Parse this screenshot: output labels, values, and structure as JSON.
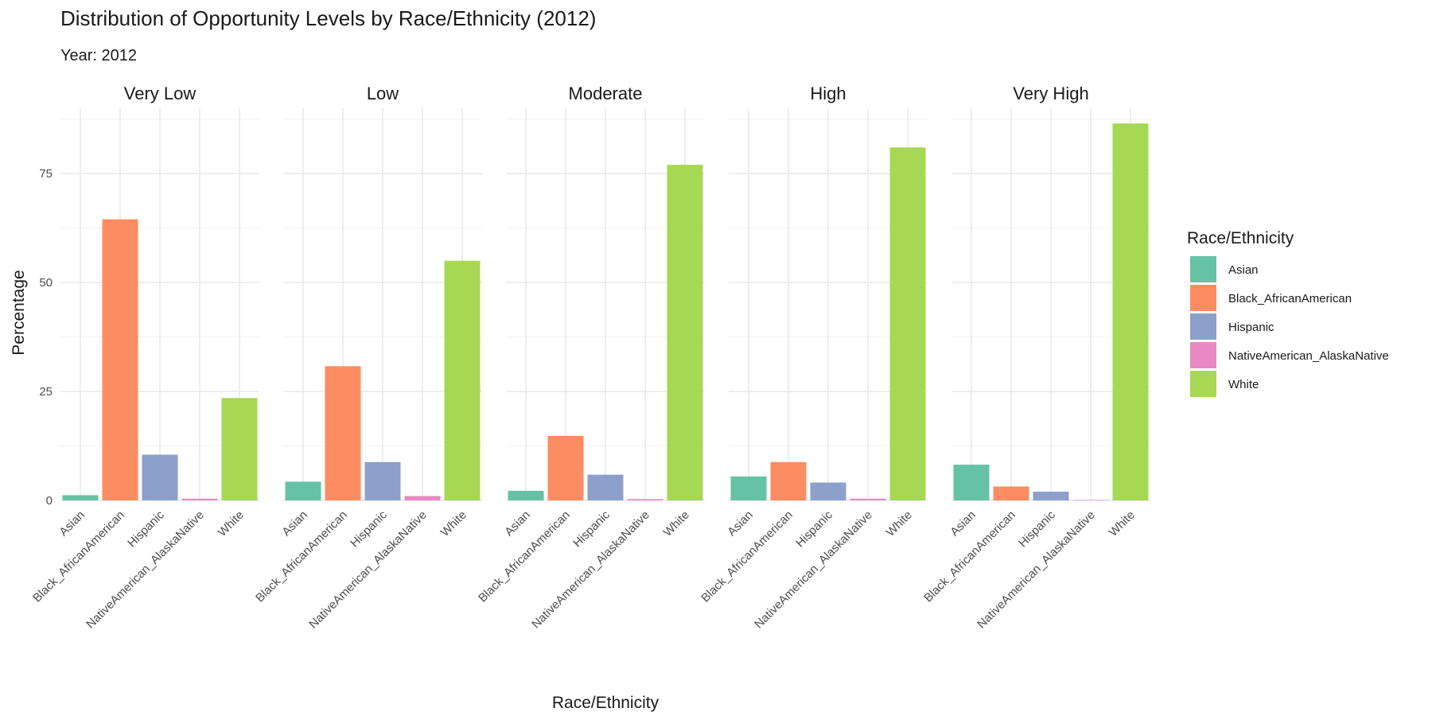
{
  "chart_data": {
    "type": "bar",
    "title": "Distribution of Opportunity Levels by Race/Ethnicity (2012)",
    "subtitle": "Year: 2012",
    "xlabel": "Race/Ethnicity",
    "ylabel": "Percentage",
    "ylim": [
      0,
      90
    ],
    "yticks": [
      0,
      25,
      50,
      75
    ],
    "grid": true,
    "legend_position": "right",
    "legend_title": "Race/Ethnicity",
    "categories": [
      "Asian",
      "Black_AfricanAmerican",
      "Hispanic",
      "NativeAmerican_AlaskaNative",
      "White"
    ],
    "colors": [
      "#66c2a5",
      "#fc8d62",
      "#8da0cb",
      "#e78ac3",
      "#a6d854"
    ],
    "panels": [
      {
        "name": "Very Low",
        "values": [
          1.2,
          64.5,
          10.5,
          0.4,
          23.5
        ]
      },
      {
        "name": "Low",
        "values": [
          4.3,
          30.8,
          8.8,
          1.0,
          55.0
        ]
      },
      {
        "name": "Moderate",
        "values": [
          2.2,
          14.8,
          5.9,
          0.3,
          77.0
        ]
      },
      {
        "name": "High",
        "values": [
          5.5,
          8.8,
          4.1,
          0.4,
          81.0
        ]
      },
      {
        "name": "Very High",
        "values": [
          8.2,
          3.2,
          2.0,
          0.1,
          86.5
        ]
      }
    ]
  }
}
